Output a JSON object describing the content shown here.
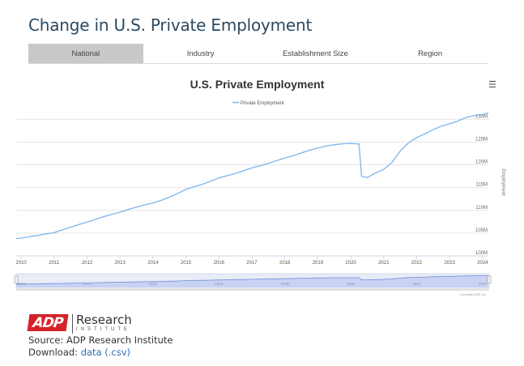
{
  "page": {
    "title": "Change in U.S. Private Employment"
  },
  "tabs": [
    {
      "label": "National",
      "active": true
    },
    {
      "label": "Industry",
      "active": false
    },
    {
      "label": "Establishment Size",
      "active": false
    },
    {
      "label": "Region",
      "active": false
    }
  ],
  "menu_icon": "hamburger-menu-icon",
  "chart_data": {
    "type": "line",
    "title": "U.S. Private Employment",
    "legend": "Private Employment",
    "legend_position": "top-center",
    "ylabel": "Employment",
    "yaxis_side": "right",
    "ylim": [
      100,
      132
    ],
    "y_ticks": [
      {
        "value": 100,
        "label": "100M"
      },
      {
        "value": 105,
        "label": "105M"
      },
      {
        "value": 110,
        "label": "110M"
      },
      {
        "value": 115,
        "label": "115M"
      },
      {
        "value": 120,
        "label": "120M"
      },
      {
        "value": 125,
        "label": "125M"
      },
      {
        "value": 130,
        "label": "130M"
      }
    ],
    "xlim": [
      2010,
      2024.2
    ],
    "x_ticks": [
      "2010",
      "2011",
      "2012",
      "2013",
      "2014",
      "2015",
      "2016",
      "2017",
      "2018",
      "2019",
      "2020",
      "2021",
      "2022",
      "2023",
      "2024"
    ],
    "grid": true,
    "color": "#7cb5ec",
    "series": [
      {
        "name": "Private Employment",
        "x": [
          2009.85,
          2010.0,
          2010.25,
          2010.5,
          2010.75,
          2011.0,
          2011.25,
          2011.5,
          2011.75,
          2012.0,
          2012.25,
          2012.5,
          2012.75,
          2013.0,
          2013.25,
          2013.5,
          2013.75,
          2014.0,
          2014.25,
          2014.5,
          2014.75,
          2015.0,
          2015.25,
          2015.5,
          2015.75,
          2016.0,
          2016.25,
          2016.5,
          2016.75,
          2017.0,
          2017.25,
          2017.5,
          2017.75,
          2018.0,
          2018.25,
          2018.5,
          2018.75,
          2019.0,
          2019.25,
          2019.5,
          2019.75,
          2020.0,
          2020.17,
          2020.25,
          2020.33,
          2020.5,
          2020.75,
          2021.0,
          2021.25,
          2021.5,
          2021.75,
          2022.0,
          2022.25,
          2022.5,
          2022.75,
          2023.0,
          2023.25,
          2023.5,
          2023.75,
          2024.0,
          2024.17
        ],
        "values": [
          103.8,
          103.9,
          104.2,
          104.5,
          104.8,
          105.1,
          105.7,
          106.3,
          106.9,
          107.4,
          108.0,
          108.6,
          109.1,
          109.6,
          110.2,
          110.7,
          111.2,
          111.6,
          112.2,
          112.9,
          113.7,
          114.6,
          115.2,
          115.7,
          116.4,
          117.1,
          117.6,
          118.1,
          118.7,
          119.3,
          119.8,
          120.3,
          120.9,
          121.5,
          122.0,
          122.6,
          123.2,
          123.7,
          124.1,
          124.4,
          124.6,
          124.7,
          124.6,
          124.6,
          117.5,
          117.2,
          118.2,
          119.0,
          120.5,
          123.0,
          124.8,
          126.0,
          126.8,
          127.7,
          128.5,
          129.0,
          129.6,
          130.4,
          130.8,
          131.0,
          131.4
        ]
      }
    ],
    "navigator": {
      "x_ticks": [
        "2010",
        "2012",
        "2014",
        "2016",
        "2018",
        "2020",
        "2022",
        "2024"
      ]
    },
    "credit": "Copyright ADP Inc"
  },
  "footer": {
    "logo_text": "ADP",
    "research_word": "Research",
    "institute_word": "INSTITUTE",
    "source_line": "Source: ADP Research Institute",
    "download_prefix": "Download: ",
    "download_link": "data (.csv)"
  }
}
